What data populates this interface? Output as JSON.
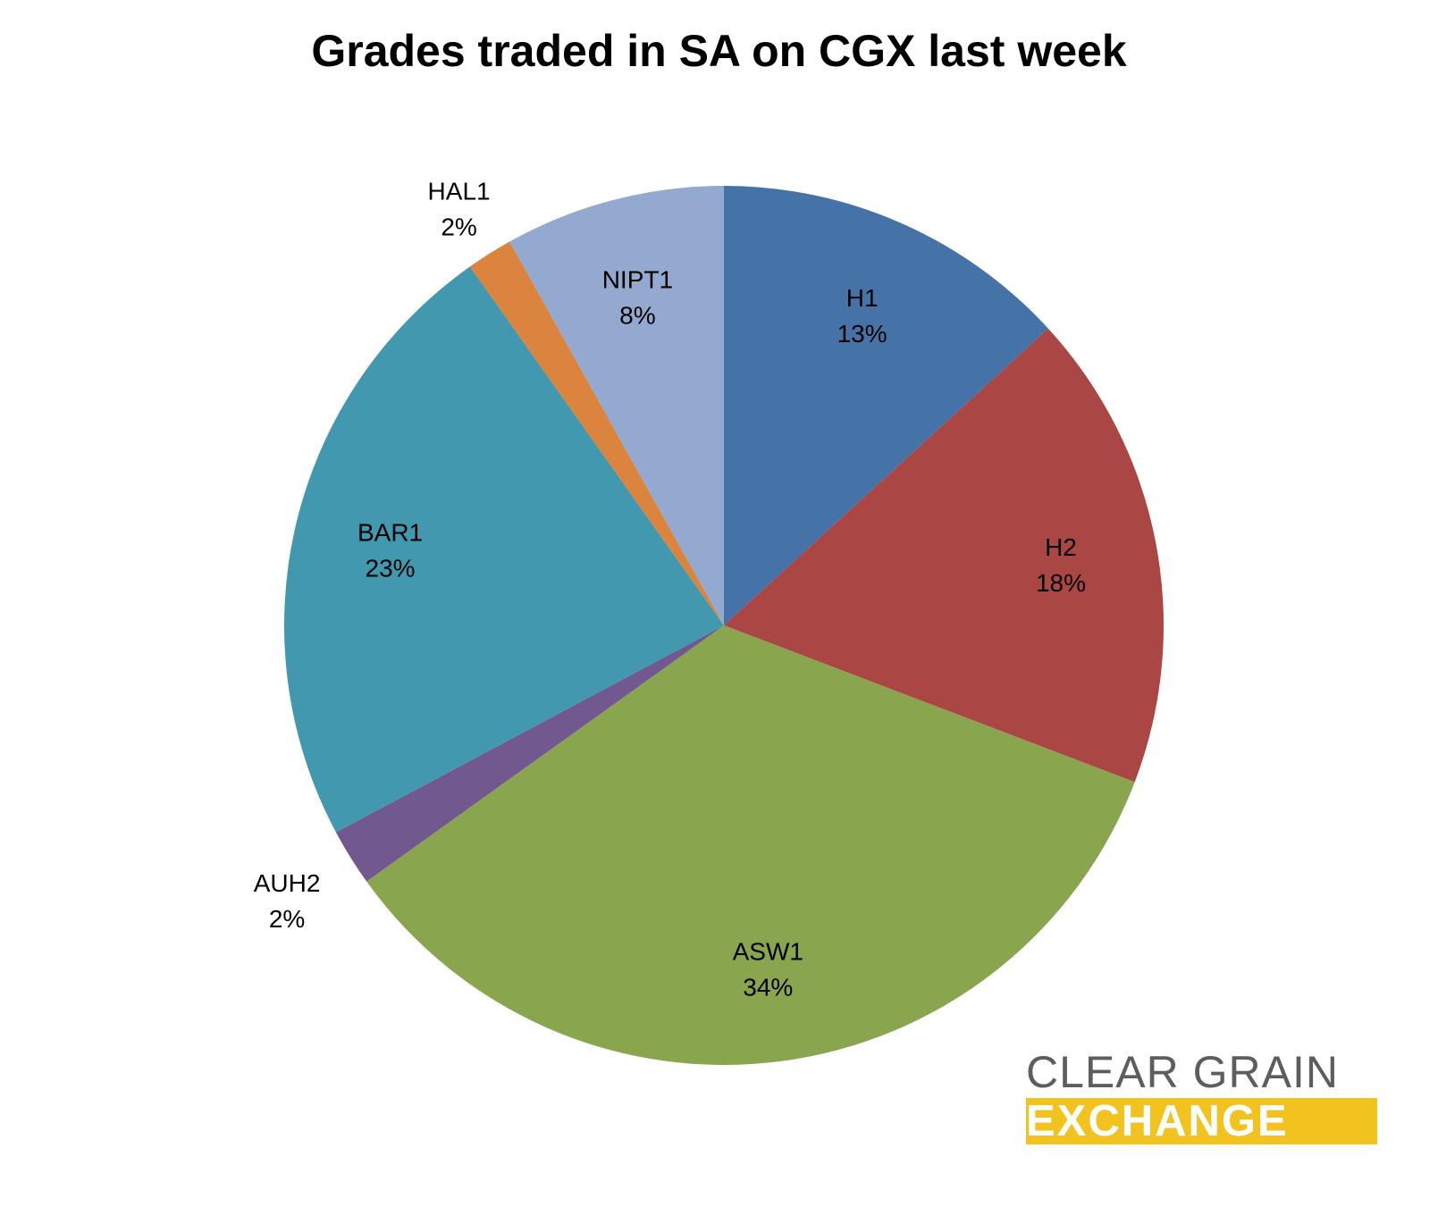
{
  "chart_data": {
    "type": "pie",
    "title": "Grades traded in SA on CGX last week",
    "slices": [
      {
        "label": "H1",
        "pct_label": "13%",
        "value": 13.2,
        "color": "#4572a7"
      },
      {
        "label": "H2",
        "pct_label": "18%",
        "value": 17.6,
        "color": "#aa4643"
      },
      {
        "label": "ASW1",
        "pct_label": "34%",
        "value": 34.3,
        "color": "#89a54e"
      },
      {
        "label": "AUH2",
        "pct_label": "2%",
        "value": 2.1,
        "color": "#71588f"
      },
      {
        "label": "BAR1",
        "pct_label": "23%",
        "value": 23.0,
        "color": "#4198af"
      },
      {
        "label": "HAL1",
        "pct_label": "2%",
        "value": 1.7,
        "color": "#db843d"
      },
      {
        "label": "NIPT1",
        "pct_label": "8%",
        "value": 8.1,
        "color": "#93a9cf"
      }
    ]
  },
  "logo": {
    "line1": "CLEAR GRAIN",
    "line2": "EXCHANGE",
    "line1_color": "#5d5d5d",
    "line2_bg": "#f2c31f",
    "line2_color": "#ffffff"
  }
}
